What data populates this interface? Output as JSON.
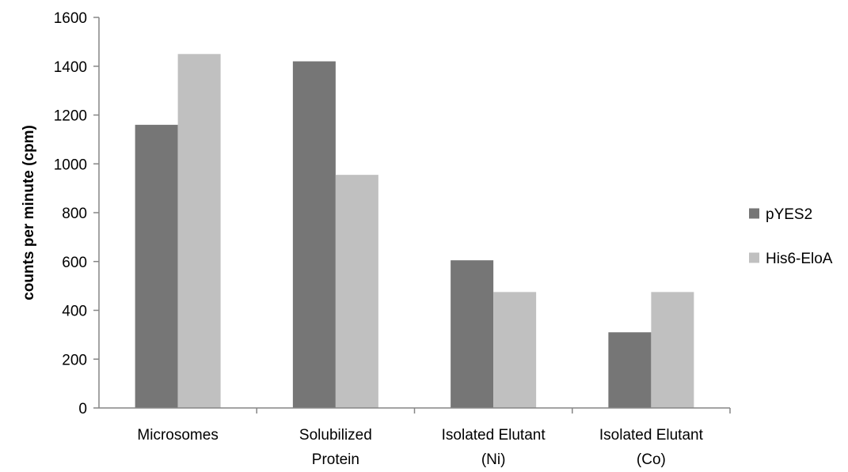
{
  "chart_data": {
    "type": "bar",
    "title": "",
    "xlabel": "",
    "ylabel": "counts per minute (cpm)",
    "ylim": [
      0,
      1600
    ],
    "yticks": [
      0,
      200,
      400,
      600,
      800,
      1000,
      1200,
      1400,
      1600
    ],
    "grid": false,
    "legend_position": "right",
    "categories": [
      [
        "Microsomes"
      ],
      [
        "Solubilized",
        "Protein"
      ],
      [
        "Isolated Elutant",
        "(Ni)"
      ],
      [
        "Isolated Elutant",
        "(Co)"
      ]
    ],
    "series": [
      {
        "name": "pYES2",
        "color": "#767676",
        "values": [
          1160,
          1420,
          605,
          310
        ]
      },
      {
        "name": "His6-EloA",
        "color": "#c0c0c0",
        "values": [
          1450,
          955,
          475,
          475
        ]
      }
    ]
  }
}
